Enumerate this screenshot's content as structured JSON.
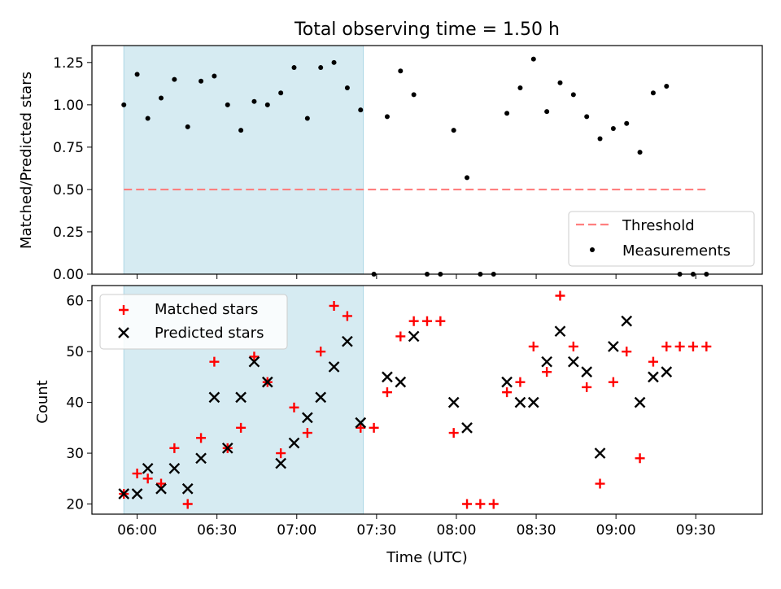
{
  "figure": {
    "title": "Total observing time = 1.50 h"
  },
  "chart_data": [
    {
      "type": "scatter",
      "ylabel": "Matched/Predicted stars",
      "ylim": [
        0,
        1.35
      ],
      "xlim": [
        "05:43",
        "09:55"
      ],
      "yticks": [
        "0.00",
        "0.25",
        "0.50",
        "0.75",
        "1.00",
        "1.25"
      ],
      "shaded_region": {
        "start": "05:55",
        "end": "07:25",
        "color": "#add8e6"
      },
      "threshold": {
        "name": "Threshold",
        "value": 0.5,
        "x_range": [
          "05:55",
          "09:35"
        ],
        "color": "#ff7f7f",
        "style": "dashed"
      },
      "legend": {
        "placement": "lower-right",
        "entries": [
          "Threshold",
          "Measurements"
        ]
      },
      "series": [
        {
          "name": "Measurements",
          "color": "#000000",
          "marker": "dot",
          "points": [
            [
              "05:55",
              1.0
            ],
            [
              "06:00",
              1.18
            ],
            [
              "06:04",
              0.92
            ],
            [
              "06:09",
              1.04
            ],
            [
              "06:14",
              1.15
            ],
            [
              "06:19",
              0.87
            ],
            [
              "06:24",
              1.14
            ],
            [
              "06:29",
              1.17
            ],
            [
              "06:34",
              1.0
            ],
            [
              "06:39",
              0.85
            ],
            [
              "06:44",
              1.02
            ],
            [
              "06:49",
              1.0
            ],
            [
              "06:54",
              1.07
            ],
            [
              "06:59",
              1.22
            ],
            [
              "07:04",
              0.92
            ],
            [
              "07:09",
              1.22
            ],
            [
              "07:14",
              1.25
            ],
            [
              "07:19",
              1.1
            ],
            [
              "07:24",
              0.97
            ],
            [
              "07:29",
              0.0
            ],
            [
              "07:34",
              0.93
            ],
            [
              "07:39",
              1.2
            ],
            [
              "07:44",
              1.06
            ],
            [
              "07:49",
              0.0
            ],
            [
              "07:54",
              0.0
            ],
            [
              "07:59",
              0.85
            ],
            [
              "08:04",
              0.57
            ],
            [
              "08:09",
              0.0
            ],
            [
              "08:14",
              0.0
            ],
            [
              "08:19",
              0.95
            ],
            [
              "08:24",
              1.1
            ],
            [
              "08:29",
              1.27
            ],
            [
              "08:34",
              0.96
            ],
            [
              "08:39",
              1.13
            ],
            [
              "08:44",
              1.06
            ],
            [
              "08:49",
              0.93
            ],
            [
              "08:54",
              0.8
            ],
            [
              "08:59",
              0.86
            ],
            [
              "09:04",
              0.89
            ],
            [
              "09:09",
              0.72
            ],
            [
              "09:14",
              1.07
            ],
            [
              "09:19",
              1.11
            ],
            [
              "09:24",
              0.0
            ],
            [
              "09:29",
              0.0
            ],
            [
              "09:34",
              0.0
            ]
          ]
        }
      ]
    },
    {
      "type": "scatter",
      "xlabel": "Time (UTC)",
      "ylabel": "Count",
      "ylim": [
        18,
        63
      ],
      "xlim": [
        "05:43",
        "09:55"
      ],
      "yticks": [
        "20",
        "30",
        "40",
        "50",
        "60"
      ],
      "xticks": [
        "06:00",
        "06:30",
        "07:00",
        "07:30",
        "08:00",
        "08:30",
        "09:00",
        "09:30"
      ],
      "shaded_region": {
        "start": "05:55",
        "end": "07:25",
        "color": "#add8e6"
      },
      "legend": {
        "placement": "top-left",
        "entries": [
          "Matched stars",
          "Predicted stars"
        ]
      },
      "series": [
        {
          "name": "Matched stars",
          "color": "#ff0000",
          "marker": "plus",
          "points": [
            [
              "05:55",
              22
            ],
            [
              "06:00",
              26
            ],
            [
              "06:04",
              25
            ],
            [
              "06:09",
              24
            ],
            [
              "06:14",
              31
            ],
            [
              "06:19",
              20
            ],
            [
              "06:24",
              33
            ],
            [
              "06:29",
              48
            ],
            [
              "06:34",
              31
            ],
            [
              "06:39",
              35
            ],
            [
              "06:44",
              49
            ],
            [
              "06:49",
              44
            ],
            [
              "06:54",
              30
            ],
            [
              "06:59",
              39
            ],
            [
              "07:04",
              34
            ],
            [
              "07:09",
              50
            ],
            [
              "07:14",
              59
            ],
            [
              "07:19",
              57
            ],
            [
              "07:24",
              35
            ],
            [
              "07:29",
              35
            ],
            [
              "07:34",
              42
            ],
            [
              "07:39",
              53
            ],
            [
              "07:44",
              56
            ],
            [
              "07:49",
              56
            ],
            [
              "07:54",
              56
            ],
            [
              "07:59",
              34
            ],
            [
              "08:04",
              20
            ],
            [
              "08:09",
              20
            ],
            [
              "08:14",
              20
            ],
            [
              "08:19",
              42
            ],
            [
              "08:24",
              44
            ],
            [
              "08:29",
              51
            ],
            [
              "08:34",
              46
            ],
            [
              "08:39",
              61
            ],
            [
              "08:44",
              51
            ],
            [
              "08:49",
              43
            ],
            [
              "08:54",
              24
            ],
            [
              "08:59",
              44
            ],
            [
              "09:04",
              50
            ],
            [
              "09:09",
              29
            ],
            [
              "09:14",
              48
            ],
            [
              "09:19",
              51
            ],
            [
              "09:24",
              51
            ],
            [
              "09:29",
              51
            ],
            [
              "09:34",
              51
            ]
          ]
        },
        {
          "name": "Predicted stars",
          "color": "#000000",
          "marker": "x",
          "points": [
            [
              "05:55",
              22
            ],
            [
              "06:00",
              22
            ],
            [
              "06:04",
              27
            ],
            [
              "06:09",
              23
            ],
            [
              "06:14",
              27
            ],
            [
              "06:19",
              23
            ],
            [
              "06:24",
              29
            ],
            [
              "06:29",
              41
            ],
            [
              "06:34",
              31
            ],
            [
              "06:39",
              41
            ],
            [
              "06:44",
              48
            ],
            [
              "06:49",
              44
            ],
            [
              "06:54",
              28
            ],
            [
              "06:59",
              32
            ],
            [
              "07:04",
              37
            ],
            [
              "07:09",
              41
            ],
            [
              "07:14",
              47
            ],
            [
              "07:19",
              52
            ],
            [
              "07:24",
              36
            ],
            [
              "07:34",
              45
            ],
            [
              "07:39",
              44
            ],
            [
              "07:44",
              53
            ],
            [
              "07:59",
              40
            ],
            [
              "08:04",
              35
            ],
            [
              "08:19",
              44
            ],
            [
              "08:24",
              40
            ],
            [
              "08:29",
              40
            ],
            [
              "08:34",
              48
            ],
            [
              "08:39",
              54
            ],
            [
              "08:44",
              48
            ],
            [
              "08:49",
              46
            ],
            [
              "08:54",
              30
            ],
            [
              "08:59",
              51
            ],
            [
              "09:04",
              56
            ],
            [
              "09:09",
              40
            ],
            [
              "09:14",
              45
            ],
            [
              "09:19",
              46
            ]
          ]
        }
      ]
    }
  ]
}
